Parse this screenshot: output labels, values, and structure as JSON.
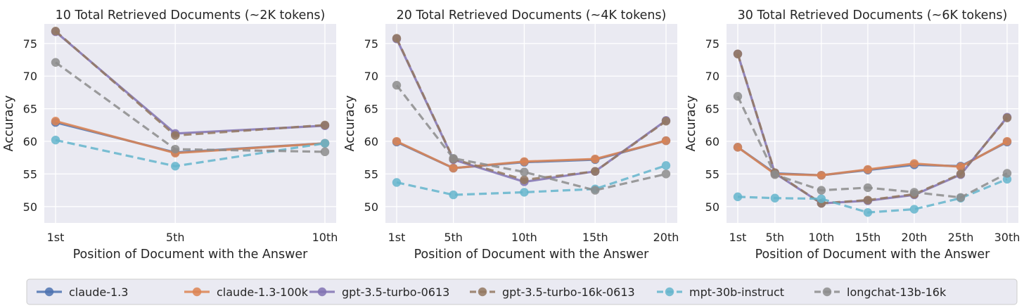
{
  "colors": {
    "plot_bg": "#eaeaf2",
    "grid": "#ffffff"
  },
  "legend": {
    "placement": "bottom-center",
    "items": [
      {
        "label": "claude-1.3",
        "color": "#4c72b0",
        "dash": "solid"
      },
      {
        "label": "claude-1.3-100k",
        "color": "#dd8452",
        "dash": "solid"
      },
      {
        "label": "gpt-3.5-turbo-0613",
        "color": "#8172b3",
        "dash": "solid"
      },
      {
        "label": "gpt-3.5-turbo-16k-0613",
        "color": "#937860",
        "dash": "dashed"
      },
      {
        "label": "mpt-30b-instruct",
        "color": "#64b5cd",
        "dash": "dashed"
      },
      {
        "label": "longchat-13b-16k",
        "color": "#8c8c8c",
        "dash": "dashed"
      }
    ]
  },
  "chart_data": [
    {
      "type": "line",
      "title": "10 Total Retrieved Documents (~2K tokens)",
      "xlabel": "Position of Document with the Answer",
      "ylabel": "Accuracy",
      "ylim": [
        47.5,
        78
      ],
      "yticks": [
        50,
        55,
        60,
        65,
        70,
        75
      ],
      "x": [
        1,
        5,
        10
      ],
      "xticklabels": [
        "1st",
        "5th",
        "10th"
      ],
      "grid": true,
      "series": [
        {
          "name": "claude-1.3",
          "values": [
            62.9,
            58.3,
            59.7
          ]
        },
        {
          "name": "claude-1.3-100k",
          "values": [
            63.1,
            58.2,
            59.7
          ]
        },
        {
          "name": "gpt-3.5-turbo-0613",
          "values": [
            76.8,
            61.2,
            62.4
          ]
        },
        {
          "name": "gpt-3.5-turbo-16k-0613",
          "values": [
            76.9,
            60.9,
            62.5
          ]
        },
        {
          "name": "mpt-30b-instruct",
          "values": [
            60.2,
            56.2,
            59.7
          ]
        },
        {
          "name": "longchat-13b-16k",
          "values": [
            72.1,
            58.8,
            58.4
          ]
        }
      ]
    },
    {
      "type": "line",
      "title": "20 Total Retrieved Documents (~4K tokens)",
      "xlabel": "Position of Document with the Answer",
      "ylabel": "Accuracy",
      "ylim": [
        47.5,
        78
      ],
      "yticks": [
        50,
        55,
        60,
        65,
        70,
        75
      ],
      "x": [
        1,
        5,
        10,
        15,
        20
      ],
      "xticklabels": [
        "1st",
        "5th",
        "10th",
        "15th",
        "20th"
      ],
      "grid": true,
      "series": [
        {
          "name": "claude-1.3",
          "values": [
            59.9,
            55.9,
            56.8,
            57.2,
            60.1
          ]
        },
        {
          "name": "claude-1.3-100k",
          "values": [
            60.0,
            55.9,
            56.9,
            57.3,
            60.1
          ]
        },
        {
          "name": "gpt-3.5-turbo-0613",
          "values": [
            75.7,
            57.2,
            53.8,
            55.4,
            63.2
          ]
        },
        {
          "name": "gpt-3.5-turbo-16k-0613",
          "values": [
            75.8,
            57.3,
            54.1,
            55.4,
            63.1
          ]
        },
        {
          "name": "mpt-30b-instruct",
          "values": [
            53.7,
            51.8,
            52.2,
            52.7,
            56.3
          ]
        },
        {
          "name": "longchat-13b-16k",
          "values": [
            68.6,
            57.4,
            55.3,
            52.5,
            55.0
          ]
        }
      ]
    },
    {
      "type": "line",
      "title": "30 Total Retrieved Documents (~6K tokens)",
      "xlabel": "Position of Document with the Answer",
      "ylabel": "Accuracy",
      "ylim": [
        47.5,
        78
      ],
      "yticks": [
        50,
        55,
        60,
        65,
        70,
        75
      ],
      "x": [
        1,
        5,
        10,
        15,
        20,
        25,
        30
      ],
      "xticklabels": [
        "1st",
        "5th",
        "10th",
        "15th",
        "20th",
        "25th",
        "30th"
      ],
      "grid": true,
      "series": [
        {
          "name": "claude-1.3",
          "values": [
            59.1,
            55.1,
            54.8,
            55.6,
            56.4,
            56.2,
            59.9
          ]
        },
        {
          "name": "claude-1.3-100k",
          "values": [
            59.1,
            55.0,
            54.8,
            55.7,
            56.6,
            56.1,
            60.0
          ]
        },
        {
          "name": "gpt-3.5-turbo-0613",
          "values": [
            73.4,
            55.1,
            50.5,
            50.9,
            51.8,
            54.9,
            63.7
          ]
        },
        {
          "name": "gpt-3.5-turbo-16k-0613",
          "values": [
            73.4,
            55.2,
            50.5,
            51.0,
            51.9,
            55.0,
            63.6
          ]
        },
        {
          "name": "mpt-30b-instruct",
          "values": [
            51.5,
            51.3,
            51.2,
            49.1,
            49.6,
            51.3,
            54.2
          ]
        },
        {
          "name": "longchat-13b-16k",
          "values": [
            66.9,
            54.9,
            52.5,
            52.9,
            52.2,
            51.4,
            55.1
          ]
        }
      ]
    }
  ]
}
